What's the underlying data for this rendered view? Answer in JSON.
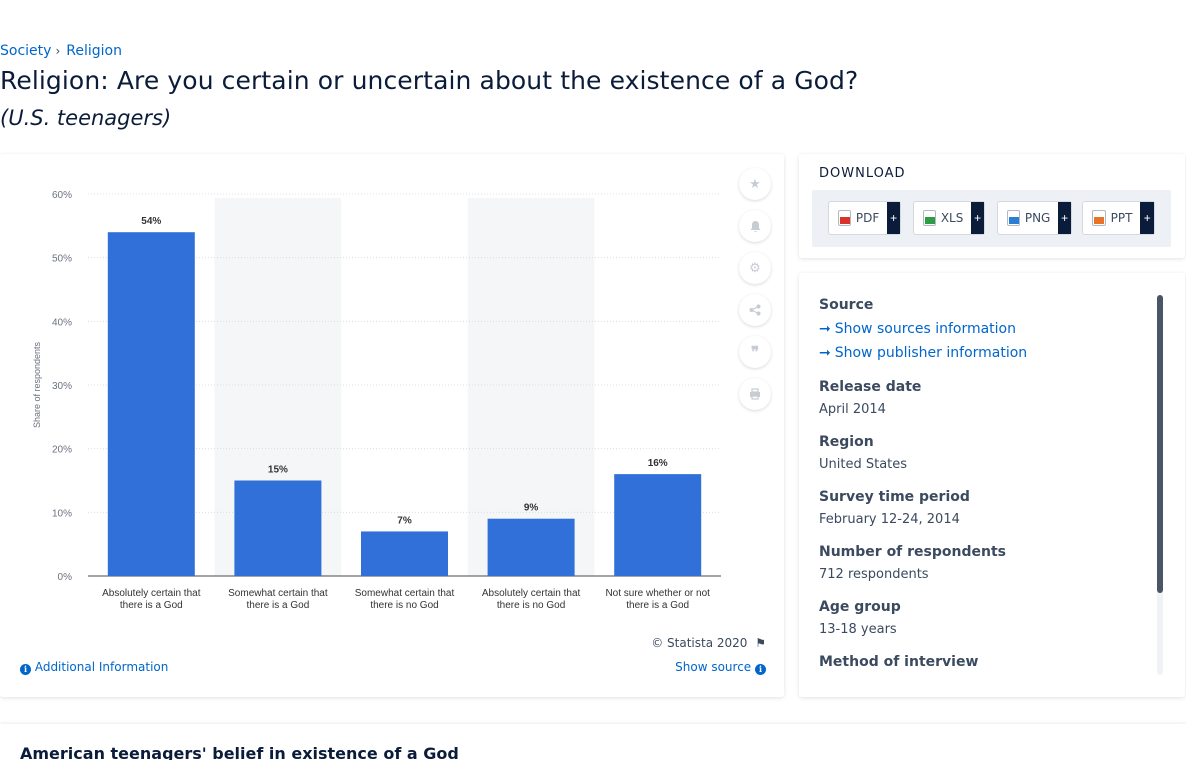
{
  "breadcrumb": [
    "Society",
    "Religion"
  ],
  "title": "Religion: Are you certain or uncertain about the existence of a God?",
  "subtitle": "(U.S. teenagers)",
  "chart_data": {
    "type": "bar",
    "categories": [
      [
        "Absolutely certain that",
        "there is a God"
      ],
      [
        "Somewhat certain that",
        "there is a God"
      ],
      [
        "Somewhat certain that",
        "there is no God"
      ],
      [
        "Absolutely certain that",
        "there is no God"
      ],
      [
        "Not sure whether or not",
        "there is a God"
      ]
    ],
    "values": [
      54,
      15,
      7,
      9,
      16
    ],
    "value_labels": [
      "54%",
      "15%",
      "7%",
      "9%",
      "16%"
    ],
    "ylabel": "Share of respondents",
    "yticks": [
      "0%",
      "10%",
      "20%",
      "30%",
      "40%",
      "50%",
      "60%"
    ],
    "ylim": [
      0,
      60
    ],
    "bar_color": "#3170d9",
    "grid": true
  },
  "chart_footer": {
    "copyright": "© Statista 2020",
    "additional_info": "Additional Information",
    "show_source": "Show source"
  },
  "download": {
    "title": "DOWNLOAD",
    "buttons": [
      {
        "label": "PDF",
        "color": "#d9342b"
      },
      {
        "label": "XLS",
        "color": "#2e9b46"
      },
      {
        "label": "PNG",
        "color": "#2a7fd4"
      },
      {
        "label": "PPT",
        "color": "#e8742a"
      }
    ],
    "plus": "+"
  },
  "meta": {
    "source_head": "Source",
    "show_sources": "Show sources information",
    "show_publisher": "Show publisher information",
    "release_head": "Release date",
    "release_val": "April 2014",
    "region_head": "Region",
    "region_val": "United States",
    "survey_head": "Survey time period",
    "survey_val": "February 12-24, 2014",
    "respondents_head": "Number of respondents",
    "respondents_val": "712 respondents",
    "age_head": "Age group",
    "age_val": "13-18 years",
    "method_head": "Method of interview"
  },
  "related": {
    "title": "American teenagers' belief in existence of a God"
  }
}
